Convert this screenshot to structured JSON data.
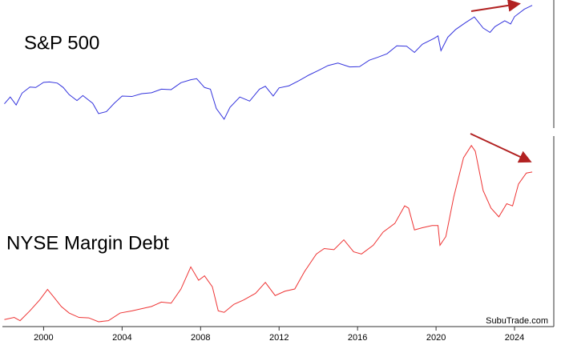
{
  "chart_data": [
    {
      "type": "line",
      "title": "S&P 500",
      "log_y": true,
      "xlim": [
        1997.9,
        2026
      ],
      "ylim": [
        630,
        6500
      ],
      "series": [
        {
          "color": "#3333dd",
          "x": [
            1998.0,
            1998.3,
            1998.6,
            1998.9,
            1999.3,
            1999.6,
            2000.0,
            2000.3,
            2000.7,
            2001.0,
            2001.3,
            2001.7,
            2002.0,
            2002.5,
            2002.8,
            2003.2,
            2003.6,
            2004.0,
            2004.5,
            2005.0,
            2005.5,
            2006.0,
            2006.5,
            2007.0,
            2007.5,
            2007.8,
            2008.2,
            2008.5,
            2008.8,
            2009.2,
            2009.5,
            2010.0,
            2010.5,
            2011.0,
            2011.3,
            2011.7,
            2012.0,
            2012.5,
            2013.0,
            2013.5,
            2014.0,
            2014.5,
            2015.0,
            2015.6,
            2016.1,
            2016.6,
            2017.0,
            2017.5,
            2018.0,
            2018.5,
            2018.9,
            2019.3,
            2019.9,
            2020.1,
            2020.25,
            2020.6,
            2021.0,
            2021.5,
            2021.95,
            2022.4,
            2022.75,
            2023.0,
            2023.5,
            2023.8,
            2024.0,
            2024.5,
            2024.9
          ],
          "values": [
            980,
            1110,
            960,
            1190,
            1330,
            1320,
            1450,
            1460,
            1430,
            1320,
            1160,
            1040,
            1140,
            990,
            820,
            850,
            990,
            1130,
            1120,
            1180,
            1200,
            1280,
            1270,
            1440,
            1520,
            1550,
            1320,
            1280,
            900,
            740,
            920,
            1110,
            1030,
            1280,
            1350,
            1130,
            1310,
            1360,
            1490,
            1650,
            1800,
            1970,
            2060,
            1920,
            1930,
            2170,
            2280,
            2440,
            2820,
            2800,
            2500,
            2900,
            3230,
            3380,
            2580,
            3300,
            3800,
            4300,
            4770,
            3900,
            3600,
            4000,
            4450,
            4200,
            4800,
            5500,
            5900
          ]
        }
      ]
    },
    {
      "type": "line",
      "title": "NYSE Margin Debt",
      "log_y": false,
      "xlim": [
        1997.9,
        2026
      ],
      "ylim": [
        119,
        972
      ],
      "xticks": [
        2000,
        2004,
        2008,
        2012,
        2016,
        2020,
        2024
      ],
      "watermark": "SubuTrade.com",
      "series": [
        {
          "color": "#ee3333",
          "x": [
            1998.0,
            1998.5,
            1998.8,
            1999.3,
            1999.8,
            2000.2,
            2000.5,
            2000.9,
            2001.3,
            2001.8,
            2002.3,
            2002.8,
            2003.3,
            2003.9,
            2004.5,
            2005.0,
            2005.5,
            2006.0,
            2006.5,
            2007.0,
            2007.5,
            2007.9,
            2008.2,
            2008.6,
            2008.9,
            2009.2,
            2009.7,
            2010.2,
            2010.8,
            2011.3,
            2011.8,
            2012.3,
            2012.8,
            2013.3,
            2013.9,
            2014.3,
            2014.8,
            2015.3,
            2015.8,
            2016.2,
            2016.8,
            2017.3,
            2017.9,
            2018.4,
            2018.6,
            2018.9,
            2019.3,
            2019.8,
            2020.1,
            2020.2,
            2020.5,
            2020.9,
            2021.4,
            2021.8,
            2022.0,
            2022.4,
            2022.8,
            2023.2,
            2023.6,
            2023.9,
            2024.2,
            2024.6,
            2024.9
          ],
          "values": [
            140,
            150,
            135,
            180,
            230,
            278,
            245,
            200,
            170,
            150,
            148,
            130,
            135,
            170,
            180,
            190,
            200,
            220,
            215,
            280,
            381,
            320,
            340,
            290,
            180,
            173,
            210,
            230,
            260,
            310,
            250,
            270,
            280,
            360,
            440,
            465,
            460,
            505,
            450,
            440,
            480,
            540,
            580,
            660,
            650,
            550,
            560,
            570,
            570,
            480,
            520,
            700,
            880,
            936,
            910,
            730,
            650,
            610,
            670,
            660,
            760,
            810,
            815
          ]
        }
      ]
    }
  ]
}
